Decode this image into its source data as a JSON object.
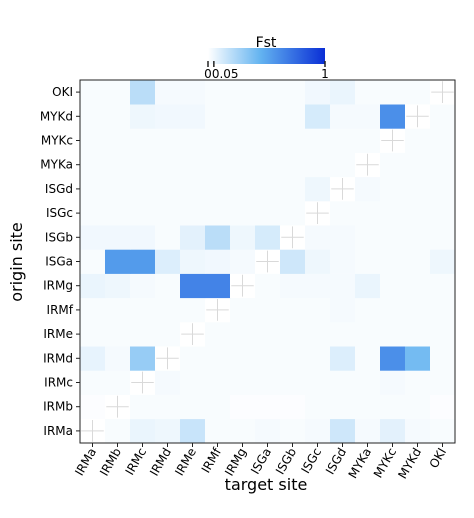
{
  "chart_data": {
    "type": "heatmap",
    "title": "",
    "xlabel": "target site",
    "ylabel": "origin site",
    "x_categories": [
      "IRMa",
      "IRMb",
      "IRMc",
      "IRMd",
      "IRMe",
      "IRMf",
      "IRMg",
      "ISGa",
      "ISGb",
      "ISGc",
      "ISGd",
      "MYKa",
      "MYKc",
      "MYKd",
      "OKI"
    ],
    "y_categories": [
      "IRMa",
      "IRMb",
      "IRMc",
      "IRMd",
      "IRMe",
      "IRMf",
      "IRMg",
      "ISGa",
      "ISGb",
      "ISGc",
      "ISGd",
      "MYKa",
      "MYKc",
      "MYKd",
      "OKI"
    ],
    "values": [
      [
        null,
        0.02,
        0.06,
        0.05,
        0.16,
        0.02,
        0.02,
        0.03,
        0.02,
        0.03,
        0.14,
        0.03,
        0.08,
        0.03,
        0.02
      ],
      [
        0.01,
        null,
        0.02,
        0.02,
        0.02,
        0.02,
        0.01,
        0.01,
        0.01,
        0.02,
        0.02,
        0.02,
        0.02,
        0.02,
        0.01
      ],
      [
        0.02,
        0.02,
        null,
        0.03,
        0.02,
        0.02,
        0.02,
        0.02,
        0.02,
        0.02,
        0.02,
        0.02,
        0.03,
        0.02,
        0.02
      ],
      [
        0.07,
        0.03,
        0.3,
        null,
        0.02,
        0.02,
        0.02,
        0.02,
        0.02,
        0.02,
        0.1,
        0.02,
        0.6,
        0.4,
        0.02
      ],
      [
        0.02,
        0.02,
        0.02,
        0.02,
        null,
        0.02,
        0.02,
        0.02,
        0.02,
        0.02,
        0.02,
        0.02,
        0.02,
        0.02,
        0.02
      ],
      [
        0.02,
        0.02,
        0.02,
        0.02,
        0.02,
        null,
        0.02,
        0.02,
        0.02,
        0.02,
        0.03,
        0.02,
        0.02,
        0.02,
        0.02
      ],
      [
        0.06,
        0.05,
        0.03,
        0.02,
        0.65,
        0.65,
        null,
        0.02,
        0.03,
        0.03,
        0.03,
        0.06,
        0.02,
        0.02,
        0.02
      ],
      [
        0.02,
        0.55,
        0.55,
        0.1,
        0.05,
        0.04,
        0.03,
        null,
        0.14,
        0.05,
        0.03,
        0.02,
        0.02,
        0.02,
        0.05
      ],
      [
        0.04,
        0.04,
        0.04,
        0.02,
        0.08,
        0.2,
        0.05,
        0.12,
        null,
        0.03,
        0.03,
        0.02,
        0.02,
        0.02,
        0.02
      ],
      [
        0.02,
        0.02,
        0.02,
        0.02,
        0.02,
        0.02,
        0.02,
        0.02,
        0.02,
        null,
        0.02,
        0.02,
        0.02,
        0.02,
        0.02
      ],
      [
        0.02,
        0.02,
        0.02,
        0.02,
        0.02,
        0.02,
        0.02,
        0.02,
        0.02,
        0.05,
        null,
        0.03,
        0.02,
        0.02,
        0.02
      ],
      [
        0.02,
        0.02,
        0.02,
        0.02,
        0.02,
        0.02,
        0.02,
        0.02,
        0.02,
        0.02,
        0.02,
        null,
        0.02,
        0.02,
        0.02
      ],
      [
        0.02,
        0.02,
        0.02,
        0.02,
        0.02,
        0.02,
        0.02,
        0.02,
        0.02,
        0.02,
        0.02,
        0.02,
        null,
        0.02,
        0.02
      ],
      [
        0.02,
        0.02,
        0.05,
        0.04,
        0.04,
        0.02,
        0.02,
        0.02,
        0.02,
        0.12,
        0.03,
        0.03,
        0.6,
        null,
        0.02
      ],
      [
        0.02,
        0.02,
        0.2,
        0.03,
        0.03,
        0.02,
        0.02,
        0.02,
        0.02,
        0.04,
        0.06,
        0.02,
        0.02,
        0.02,
        null
      ]
    ],
    "colorbar": {
      "title": "Fst",
      "range": [
        0,
        1
      ],
      "ticks": [
        {
          "value": 0,
          "label": "0"
        },
        {
          "value": 0.05,
          "label": "0.05"
        },
        {
          "value": 1,
          "label": "1"
        }
      ],
      "color_low": "#ffffff",
      "color_mid": "#63b3f0",
      "color_high": "#0a2ed6"
    },
    "grid": false
  }
}
